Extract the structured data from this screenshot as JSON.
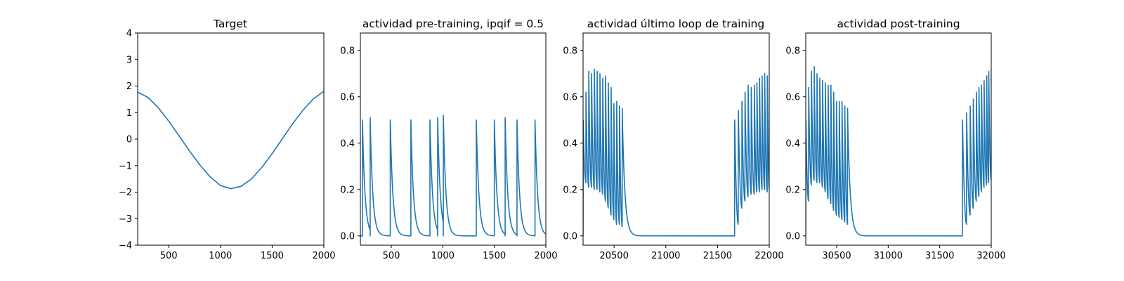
{
  "chart_data": [
    {
      "type": "line",
      "title": "Target",
      "xlim": [
        200,
        2000
      ],
      "ylim": [
        -4,
        4
      ],
      "xticks": [
        500,
        1000,
        1500,
        2000
      ],
      "yticks": [
        -4,
        -3,
        -2,
        -1,
        0,
        1,
        2,
        3,
        4
      ],
      "xticklabels": [
        "500",
        "1000",
        "1500",
        "2000"
      ],
      "yticklabels": [
        "−4",
        "−3",
        "−2",
        "−1",
        "0",
        "1",
        "2",
        "3",
        "4"
      ],
      "color": "#1f77b4",
      "series": [
        {
          "x": [
            200,
            300,
            400,
            500,
            600,
            700,
            800,
            900,
            1000,
            1100,
            1200,
            1300,
            1400,
            1500,
            1600,
            1700,
            1800,
            1900,
            2000
          ],
          "y": [
            1.77,
            1.57,
            1.18,
            0.68,
            0.12,
            -0.44,
            -0.97,
            -1.42,
            -1.75,
            -1.87,
            -1.78,
            -1.5,
            -1.07,
            -0.55,
            0.02,
            0.59,
            1.1,
            1.52,
            1.8
          ]
        }
      ]
    },
    {
      "type": "line",
      "title": "actividad pre-training, ipqif = 0.5",
      "xlim": [
        200,
        2000
      ],
      "ylim": [
        -0.04,
        0.875
      ],
      "xticks": [
        500,
        1000,
        1500,
        2000
      ],
      "yticks": [
        0.0,
        0.2,
        0.4,
        0.6,
        0.8
      ],
      "xticklabels": [
        "500",
        "1000",
        "1500",
        "2000"
      ],
      "yticklabels": [
        "0.0",
        "0.2",
        "0.4",
        "0.6",
        "0.8"
      ],
      "color": "#1f77b4",
      "series": [
        {
          "spikes": [
            {
              "x": 220,
              "y": 0.5
            },
            {
              "x": 295,
              "y": 0.51
            },
            {
              "x": 490,
              "y": 0.5
            },
            {
              "x": 690,
              "y": 0.5
            },
            {
              "x": 875,
              "y": 0.5
            },
            {
              "x": 950,
              "y": 0.51
            },
            {
              "x": 1005,
              "y": 0.52
            },
            {
              "x": 1325,
              "y": 0.5
            },
            {
              "x": 1500,
              "y": 0.5
            },
            {
              "x": 1605,
              "y": 0.51
            },
            {
              "x": 1720,
              "y": 0.5
            },
            {
              "x": 1895,
              "y": 0.5
            }
          ],
          "decay_tau": 25,
          "end_x": 2000
        }
      ]
    },
    {
      "type": "line",
      "title": "actividad último loop de training",
      "xlim": [
        20200,
        22000
      ],
      "ylim": [
        -0.04,
        0.875
      ],
      "xticks": [
        20500,
        21000,
        21500,
        22000
      ],
      "yticks": [
        0.0,
        0.2,
        0.4,
        0.6,
        0.8
      ],
      "xticklabels": [
        "20500",
        "21000",
        "21500",
        "22000"
      ],
      "yticklabels": [
        "0.0",
        "0.2",
        "0.4",
        "0.6",
        "0.8"
      ],
      "color": "#1f77b4",
      "series": [
        {
          "burst_periods": [
            {
              "x": 20200,
              "peak": 0.5,
              "trough": 0.0
            },
            {
              "x": 20227,
              "peak": 0.62,
              "trough": 0.23
            },
            {
              "x": 20254,
              "peak": 0.71,
              "trough": 0.21
            },
            {
              "x": 20281,
              "peak": 0.7,
              "trough": 0.21
            },
            {
              "x": 20308,
              "peak": 0.72,
              "trough": 0.2
            },
            {
              "x": 20335,
              "peak": 0.71,
              "trough": 0.2
            },
            {
              "x": 20362,
              "peak": 0.7,
              "trough": 0.19
            },
            {
              "x": 20389,
              "peak": 0.68,
              "trough": 0.18
            },
            {
              "x": 20416,
              "peak": 0.69,
              "trough": 0.15
            },
            {
              "x": 20443,
              "peak": 0.66,
              "trough": 0.12
            },
            {
              "x": 20470,
              "peak": 0.64,
              "trough": 0.09
            },
            {
              "x": 20497,
              "peak": 0.57,
              "trough": 0.07
            },
            {
              "x": 20524,
              "peak": 0.58,
              "trough": 0.05
            },
            {
              "x": 20551,
              "peak": 0.56,
              "trough": 0.05
            },
            {
              "x": 20578,
              "peak": 0.55,
              "trough": 0.04
            }
          ],
          "decay_tau": 25,
          "quiet_until": 21665,
          "burst_periods_2": [
            {
              "x": 21665,
              "peak": 0.5,
              "trough": 0.02
            },
            {
              "x": 21700,
              "peak": 0.54,
              "trough": 0.05
            },
            {
              "x": 21735,
              "peak": 0.58,
              "trough": 0.12
            },
            {
              "x": 21765,
              "peak": 0.62,
              "trough": 0.15
            },
            {
              "x": 21795,
              "peak": 0.65,
              "trough": 0.17
            },
            {
              "x": 21825,
              "peak": 0.64,
              "trough": 0.18
            },
            {
              "x": 21855,
              "peak": 0.65,
              "trough": 0.18
            },
            {
              "x": 21880,
              "peak": 0.66,
              "trough": 0.19
            },
            {
              "x": 21905,
              "peak": 0.68,
              "trough": 0.19
            },
            {
              "x": 21930,
              "peak": 0.69,
              "trough": 0.2
            },
            {
              "x": 21955,
              "peak": 0.7,
              "trough": 0.2
            },
            {
              "x": 21980,
              "peak": 0.69,
              "trough": 0.19
            },
            {
              "x": 22000,
              "peak": 0.69,
              "trough": 0.2
            }
          ]
        }
      ]
    },
    {
      "type": "line",
      "title": "actividad post-training",
      "xlim": [
        30200,
        32000
      ],
      "ylim": [
        -0.04,
        0.875
      ],
      "xticks": [
        30500,
        31000,
        31500,
        32000
      ],
      "yticks": [
        0.0,
        0.2,
        0.4,
        0.6,
        0.8
      ],
      "xticklabels": [
        "30500",
        "31000",
        "31500",
        "32000"
      ],
      "yticklabels": [
        "0.0",
        "0.2",
        "0.4",
        "0.6",
        "0.8"
      ],
      "color": "#1f77b4",
      "series": [
        {
          "burst_periods": [
            {
              "x": 30200,
              "peak": 0.5,
              "trough": 0.0
            },
            {
              "x": 30227,
              "peak": 0.64,
              "trough": 0.15
            },
            {
              "x": 30254,
              "peak": 0.71,
              "trough": 0.22
            },
            {
              "x": 30281,
              "peak": 0.73,
              "trough": 0.24
            },
            {
              "x": 30308,
              "peak": 0.7,
              "trough": 0.23
            },
            {
              "x": 30335,
              "peak": 0.68,
              "trough": 0.23
            },
            {
              "x": 30362,
              "peak": 0.67,
              "trough": 0.21
            },
            {
              "x": 30389,
              "peak": 0.66,
              "trough": 0.19
            },
            {
              "x": 30416,
              "peak": 0.65,
              "trough": 0.16
            },
            {
              "x": 30443,
              "peak": 0.65,
              "trough": 0.14
            },
            {
              "x": 30470,
              "peak": 0.62,
              "trough": 0.11
            },
            {
              "x": 30497,
              "peak": 0.58,
              "trough": 0.09
            },
            {
              "x": 30524,
              "peak": 0.58,
              "trough": 0.08
            },
            {
              "x": 30551,
              "peak": 0.58,
              "trough": 0.07
            },
            {
              "x": 30578,
              "peak": 0.56,
              "trough": 0.06
            },
            {
              "x": 30605,
              "peak": 0.55,
              "trough": 0.05
            }
          ],
          "decay_tau": 25,
          "quiet_until": 31720,
          "burst_periods_2": [
            {
              "x": 31720,
              "peak": 0.5,
              "trough": 0.03
            },
            {
              "x": 31760,
              "peak": 0.53,
              "trough": 0.05
            },
            {
              "x": 31795,
              "peak": 0.56,
              "trough": 0.09
            },
            {
              "x": 31825,
              "peak": 0.59,
              "trough": 0.12
            },
            {
              "x": 31855,
              "peak": 0.62,
              "trough": 0.15
            },
            {
              "x": 31880,
              "peak": 0.64,
              "trough": 0.17
            },
            {
              "x": 31905,
              "peak": 0.65,
              "trough": 0.19
            },
            {
              "x": 31930,
              "peak": 0.67,
              "trough": 0.21
            },
            {
              "x": 31955,
              "peak": 0.69,
              "trough": 0.22
            },
            {
              "x": 31975,
              "peak": 0.71,
              "trough": 0.23
            },
            {
              "x": 32000,
              "peak": 0.72,
              "trough": 0.24
            }
          ]
        }
      ]
    }
  ]
}
